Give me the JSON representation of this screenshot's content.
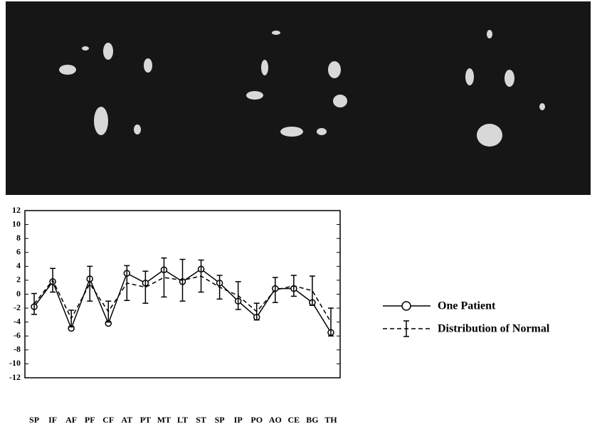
{
  "chart_data": {
    "type": "line",
    "categories": [
      "SP",
      "IF",
      "AF",
      "PF",
      "CF",
      "AT",
      "PT",
      "MT",
      "LT",
      "ST",
      "SP",
      "IP",
      "PO",
      "AO",
      "CE",
      "BG",
      "TH"
    ],
    "series": [
      {
        "name": "One Patient",
        "color": "#000000",
        "style": "solid",
        "marker": "circle",
        "values": [
          -1.8,
          1.8,
          -4.9,
          2.2,
          -4.2,
          3.0,
          1.6,
          3.5,
          1.8,
          3.6,
          1.6,
          -1.0,
          -3.3,
          0.8,
          0.8,
          -1.2,
          -5.5
        ]
      },
      {
        "name": "Distribution of Normal",
        "color": "#000000",
        "style": "dashed",
        "marker": "errorbar",
        "values": [
          -1.4,
          2.0,
          -3.5,
          1.5,
          -2.5,
          1.6,
          1.0,
          2.4,
          2.0,
          2.6,
          1.0,
          -0.2,
          -2.5,
          0.6,
          1.2,
          0.5,
          -4.0
        ],
        "errors": [
          1.5,
          1.7,
          1.2,
          2.5,
          1.5,
          2.5,
          2.3,
          2.8,
          3.0,
          2.3,
          1.7,
          2.0,
          1.2,
          1.8,
          1.5,
          2.1,
          2.0
        ]
      }
    ],
    "ylim": [
      -12,
      12
    ],
    "yticks": [
      -12,
      -10,
      -8,
      -6,
      -4,
      -2,
      0,
      2,
      4,
      6,
      8,
      10,
      12
    ],
    "grid": false
  }
}
